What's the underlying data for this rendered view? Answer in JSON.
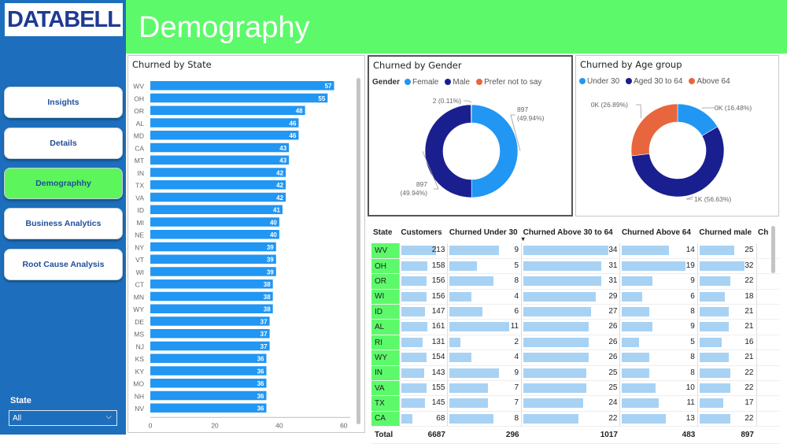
{
  "logo": "DATABELL",
  "header": {
    "title": "Demography"
  },
  "nav": [
    {
      "label": "Insights",
      "active": false
    },
    {
      "label": "Details",
      "active": false
    },
    {
      "label": "Demographhy",
      "active": true
    },
    {
      "label": "Business Analytics",
      "active": false
    },
    {
      "label": "Root Cause Analysis",
      "active": false
    }
  ],
  "filter": {
    "label": "State",
    "value": "All"
  },
  "colors": {
    "bar": "#2196f3",
    "sidebar": "#1d6fbd",
    "header": "#5cfa6a",
    "c_female": "#2196f3",
    "c_male": "#1a1f8f",
    "c_other": "#e8663d",
    "table_bar": "#a8d2f4"
  },
  "chart_data": [
    {
      "type": "bar",
      "orientation": "horizontal",
      "title": "Churned by State",
      "categories": [
        "WV",
        "OH",
        "OR",
        "AL",
        "MD",
        "CA",
        "MT",
        "IN",
        "TX",
        "VA",
        "ID",
        "MI",
        "NE",
        "NY",
        "VT",
        "WI",
        "CT",
        "MN",
        "WY",
        "DE",
        "MS",
        "NJ",
        "KS",
        "KY",
        "MO",
        "NH",
        "NV"
      ],
      "values": [
        57,
        55,
        48,
        46,
        46,
        43,
        43,
        42,
        42,
        42,
        41,
        40,
        40,
        39,
        39,
        39,
        38,
        38,
        38,
        37,
        37,
        37,
        36,
        36,
        36,
        36,
        36
      ],
      "xlim": [
        0,
        62
      ],
      "xticks": [
        0,
        20,
        40,
        60
      ]
    },
    {
      "type": "pie",
      "title": "Churned by Gender",
      "legend_title": "Gender",
      "slices": [
        {
          "name": "Female",
          "value": 897,
          "label": "897",
          "pct": "(49.94%)",
          "color": "#2196f3"
        },
        {
          "name": "Male",
          "value": 897,
          "label": "897",
          "pct": "(49.94%)",
          "color": "#1a1f8f"
        },
        {
          "name": "Prefer not to say",
          "value": 2,
          "label": "2 (0.11%)",
          "pct": "",
          "color": "#e8663d"
        }
      ]
    },
    {
      "type": "pie",
      "title": "Churned by Age group",
      "slices": [
        {
          "name": "Under 30",
          "value": 16.48,
          "label": "0K (16.48%)",
          "color": "#2196f3"
        },
        {
          "name": "Aged 30 to 64",
          "value": 56.63,
          "label": "1K (56.63%)",
          "color": "#1a1f8f"
        },
        {
          "name": "Above 64",
          "value": 26.89,
          "label": "0K (26.89%)",
          "color": "#e8663d"
        }
      ]
    },
    {
      "type": "table",
      "columns": [
        "State",
        "Customers",
        "Churned Under 30",
        "Churned Above 30 to 64",
        "Churned Above 64",
        "Churned male",
        "Ch"
      ],
      "sort_indicator": "▾",
      "rows": [
        [
          "WV",
          213,
          9,
          34,
          14,
          25
        ],
        [
          "OH",
          158,
          5,
          31,
          19,
          32
        ],
        [
          "OR",
          156,
          8,
          31,
          9,
          22
        ],
        [
          "WI",
          156,
          4,
          29,
          6,
          18
        ],
        [
          "ID",
          147,
          6,
          27,
          8,
          21
        ],
        [
          "AL",
          161,
          11,
          26,
          9,
          21
        ],
        [
          "RI",
          131,
          2,
          26,
          5,
          16
        ],
        [
          "WY",
          154,
          4,
          26,
          8,
          21
        ],
        [
          "IN",
          143,
          9,
          25,
          8,
          22
        ],
        [
          "VA",
          155,
          7,
          25,
          10,
          22
        ],
        [
          "TX",
          145,
          7,
          24,
          11,
          17
        ],
        [
          "CA",
          68,
          8,
          22,
          13,
          22
        ]
      ],
      "totals": [
        "Total",
        6687,
        296,
        1017,
        483,
        897
      ]
    }
  ]
}
